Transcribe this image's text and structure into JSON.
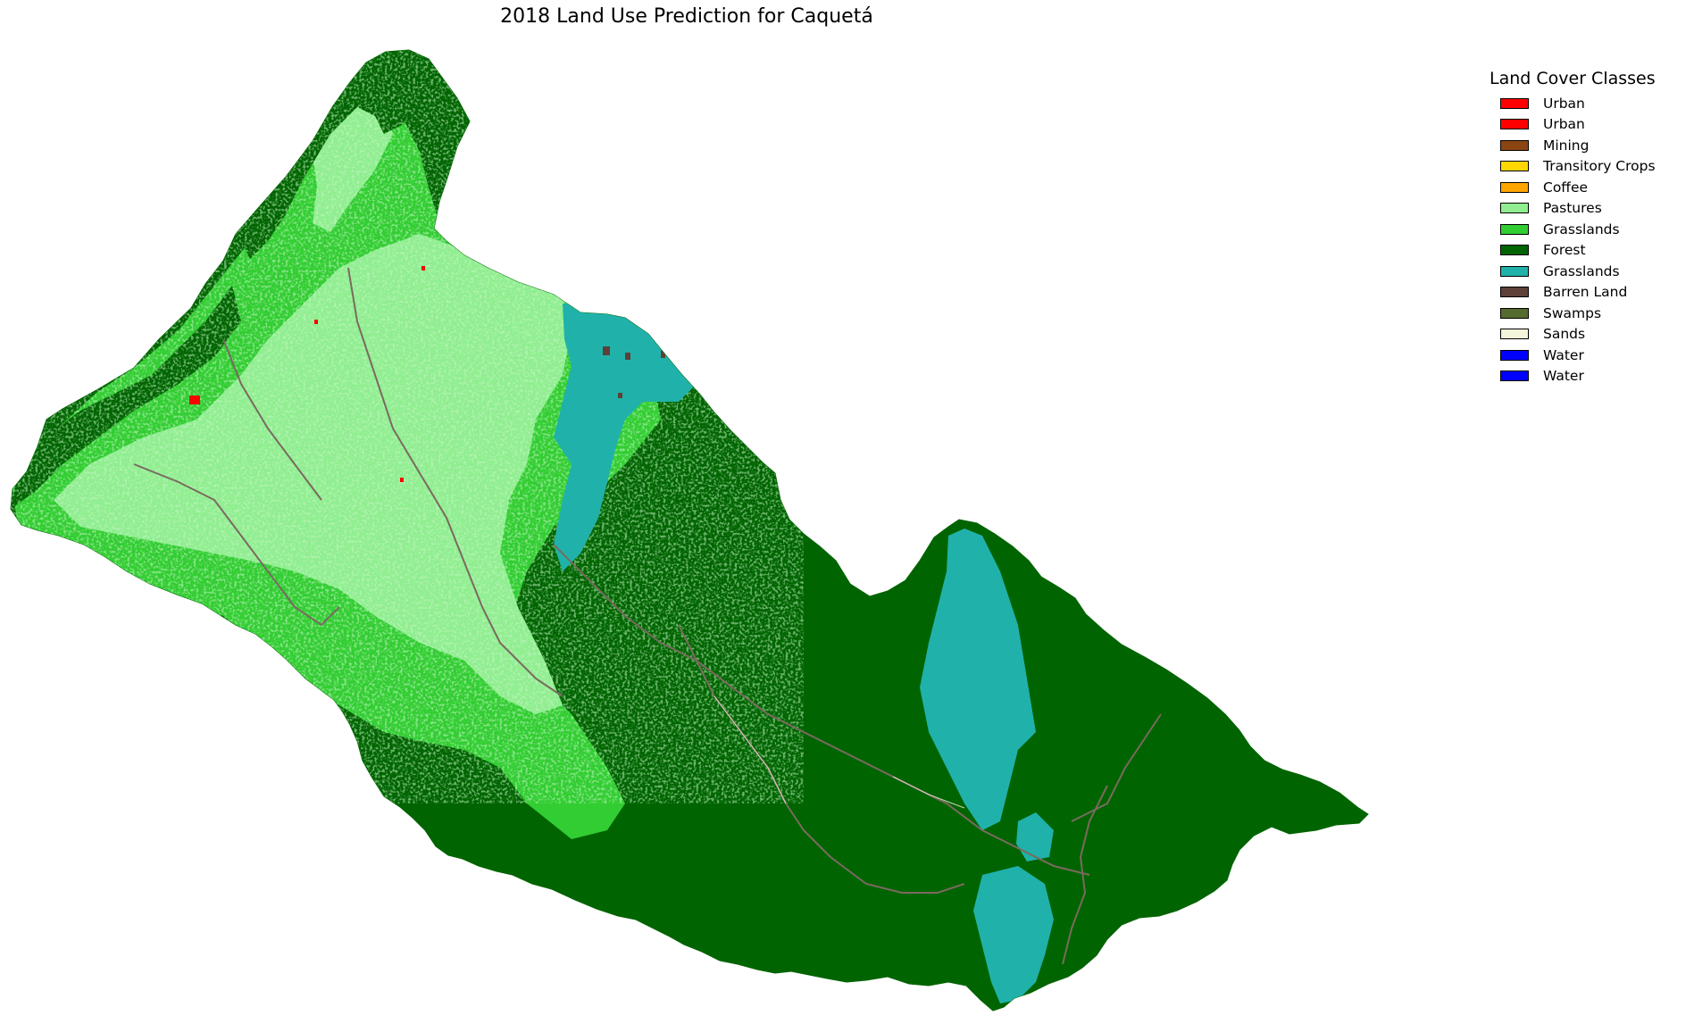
{
  "title": "2018 Land Use Prediction for Caquetá",
  "legend": {
    "title": "Land Cover Classes",
    "items": [
      {
        "label": "Urban",
        "color": "#ff0000"
      },
      {
        "label": "Urban",
        "color": "#ff0000"
      },
      {
        "label": "Mining",
        "color": "#8b4513"
      },
      {
        "label": "Transitory Crops",
        "color": "#ffd700"
      },
      {
        "label": "Coffee",
        "color": "#ffa500"
      },
      {
        "label": "Pastures",
        "color": "#90ee90"
      },
      {
        "label": "Grasslands",
        "color": "#32cd32"
      },
      {
        "label": "Forest",
        "color": "#006400"
      },
      {
        "label": "Grasslands",
        "color": "#20b2aa"
      },
      {
        "label": "Barren Land",
        "color": "#5d4037"
      },
      {
        "label": "Swamps",
        "color": "#556b2f"
      },
      {
        "label": "Sands",
        "color": "#f5f5dc"
      },
      {
        "label": "Water",
        "color": "#0000ff"
      },
      {
        "label": "Water",
        "color": "#0000ff"
      }
    ]
  },
  "map_colors": {
    "forest": "#006400",
    "grasslands_green": "#32cd32",
    "pastures": "#90ee90",
    "grasslands_teal": "#20b2aa",
    "urban": "#ff0000",
    "barren": "#5d4037",
    "sands": "#f5f5dc",
    "river": "#7a6a60"
  }
}
